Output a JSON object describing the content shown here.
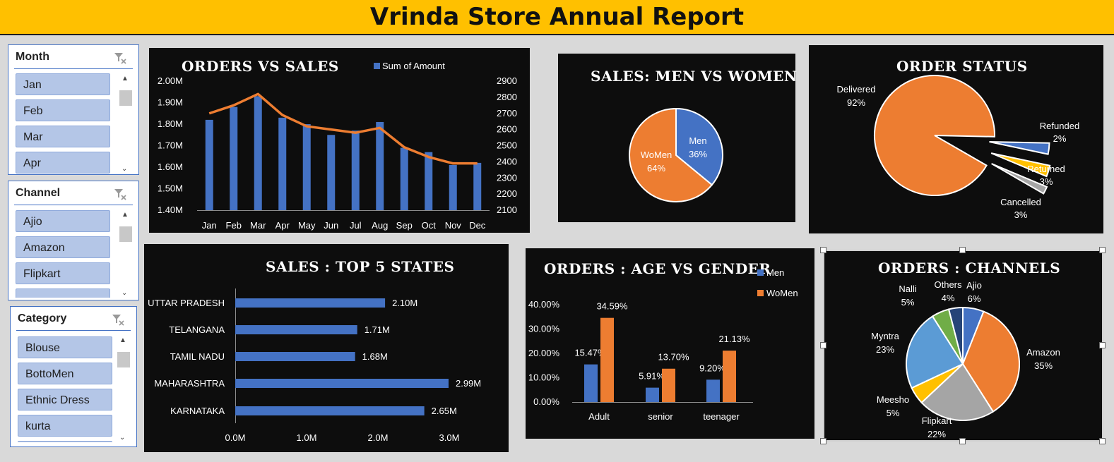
{
  "title": "Vrinda Store Annual Report",
  "slicers": [
    {
      "header": "Month",
      "items": [
        "Jan",
        "Feb",
        "Mar",
        "Apr"
      ],
      "icon": "filter-clear-icon"
    },
    {
      "header": "Channel",
      "items": [
        "Ajio",
        "Amazon",
        "Flipkart",
        ""
      ],
      "icon": "filter-clear-icon"
    },
    {
      "header": "Category",
      "items": [
        "Blouse",
        "BottoMen",
        "Ethnic Dress",
        "kurta",
        ""
      ],
      "icon": "filter-clear-icon"
    }
  ],
  "colors": {
    "blue": "#4472c4",
    "orange": "#ed7d31",
    "gray": "#a5a5a5",
    "yellow": "#ffc000",
    "lightblue": "#5b9bd5",
    "green": "#70ad47",
    "navy": "#264478"
  },
  "chart_data": [
    {
      "id": "orders_vs_sales",
      "type": "bar",
      "title": "ORDERS VS SALES",
      "legend": "Sum of Amount",
      "categories": [
        "Jan",
        "Feb",
        "Mar",
        "Apr",
        "May",
        "Jun",
        "Jul",
        "Aug",
        "Sep",
        "Oct",
        "Nov",
        "Dec"
      ],
      "series": [
        {
          "name": "Sum of Amount",
          "type": "bar",
          "axis": "left",
          "values": [
            1.82,
            1.88,
            1.93,
            1.83,
            1.8,
            1.75,
            1.77,
            1.81,
            1.69,
            1.67,
            1.61,
            1.62
          ]
        },
        {
          "type": "line",
          "axis": "right",
          "values": [
            2700,
            2750,
            2820,
            2690,
            2620,
            2600,
            2580,
            2610,
            2490,
            2430,
            2390,
            2390
          ]
        }
      ],
      "left_ticks": [
        "2.00M",
        "1.90M",
        "1.80M",
        "1.70M",
        "1.60M",
        "1.50M",
        "1.40M"
      ],
      "right_ticks": [
        "2900",
        "2800",
        "2700",
        "2600",
        "2500",
        "2400",
        "2300",
        "2200",
        "2100"
      ],
      "ylim_left": [
        1.4,
        2.0
      ],
      "ylim_right": [
        2100,
        2900
      ]
    },
    {
      "id": "men_vs_women",
      "type": "pie",
      "title": "SALES: MEN VS WOMEN",
      "slices": [
        {
          "label": "Men",
          "pct": "36%",
          "value": 36
        },
        {
          "label": "WoMen",
          "pct": "64%",
          "value": 64
        }
      ]
    },
    {
      "id": "order_status",
      "type": "pie",
      "title": "ORDER STATUS",
      "slices": [
        {
          "label": "Delivered",
          "pct": "92%",
          "value": 92
        },
        {
          "label": "Returned",
          "pct": "3%",
          "value": 3
        },
        {
          "label": "Cancelled",
          "pct": "3%",
          "value": 3
        },
        {
          "label": "Refunded",
          "pct": "2%",
          "value": 2
        }
      ]
    },
    {
      "id": "top5_states",
      "type": "bar",
      "orientation": "horizontal",
      "title": "SALES : TOP 5 STATES",
      "categories": [
        "UTTAR PRADESH",
        "TELANGANA",
        "TAMIL NADU",
        "MAHARASHTRA",
        "KARNATAKA"
      ],
      "values": [
        2.1,
        1.71,
        1.68,
        2.99,
        2.65
      ],
      "value_labels": [
        "2.10M",
        "1.71M",
        "1.68M",
        "2.99M",
        "2.65M"
      ],
      "x_ticks": [
        "0.0M",
        "1.0M",
        "2.0M",
        "3.0M"
      ],
      "xlim": [
        0,
        3.0
      ]
    },
    {
      "id": "age_vs_gender",
      "type": "bar",
      "title": "ORDERS : AGE  VS  GENDER",
      "categories": [
        "Adult",
        "senior",
        "teenager"
      ],
      "series": [
        {
          "name": "Men",
          "values": [
            15.47,
            5.91,
            9.2
          ],
          "labels": [
            "15.47%",
            "5.91%",
            "9.20%"
          ]
        },
        {
          "name": "WoMen",
          "values": [
            34.59,
            13.7,
            21.13
          ],
          "labels": [
            "34.59%",
            "13.70%",
            "21.13%"
          ]
        }
      ],
      "y_ticks": [
        "40.00%",
        "30.00%",
        "20.00%",
        "10.00%",
        "0.00%"
      ],
      "ylim": [
        0,
        40
      ]
    },
    {
      "id": "channels",
      "type": "pie",
      "title": "ORDERS : CHANNELS",
      "slices": [
        {
          "label": "Ajio",
          "pct": "6%",
          "value": 6
        },
        {
          "label": "Amazon",
          "pct": "35%",
          "value": 35
        },
        {
          "label": "Flipkart",
          "pct": "22%",
          "value": 22
        },
        {
          "label": "Meesho",
          "pct": "5%",
          "value": 5
        },
        {
          "label": "Myntra",
          "pct": "23%",
          "value": 23
        },
        {
          "label": "Nalli",
          "pct": "5%",
          "value": 5
        },
        {
          "label": "Others",
          "pct": "4%",
          "value": 4
        }
      ]
    }
  ]
}
